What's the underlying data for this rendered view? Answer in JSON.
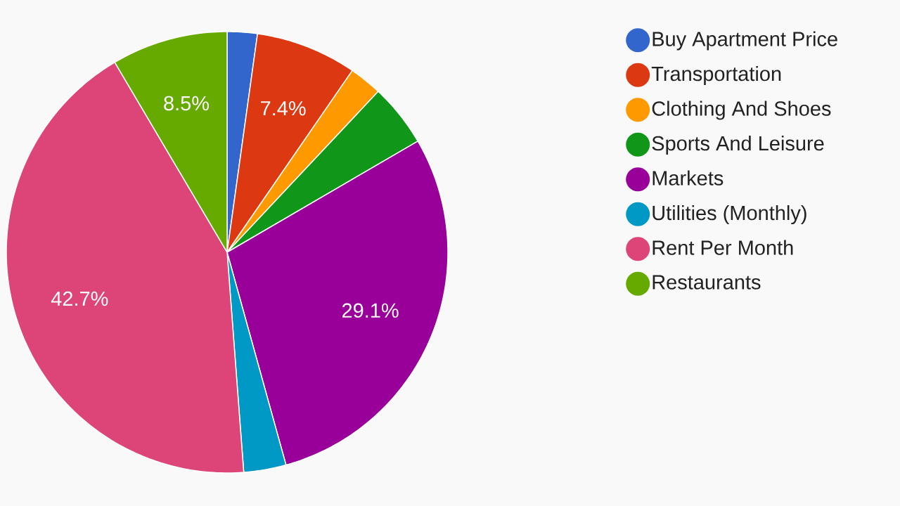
{
  "chart_data": {
    "type": "pie",
    "categories": [
      "Buy Apartment Price",
      "Transportation",
      "Clothing And Shoes",
      "Sports And Leisure",
      "Markets",
      "Utilities (Monthly)",
      "Rent Per Month",
      "Restaurants"
    ],
    "values": [
      2.2,
      7.4,
      2.4,
      4.6,
      29.1,
      3.1,
      42.7,
      8.5
    ],
    "colors": [
      "#3366cc",
      "#dc3912",
      "#ff9900",
      "#109618",
      "#990099",
      "#0099c6",
      "#dd4477",
      "#66aa00"
    ],
    "value_labels": [
      null,
      "7.4%",
      null,
      null,
      "29.1%",
      null,
      "42.7%",
      "8.5%"
    ],
    "legend": "right"
  }
}
